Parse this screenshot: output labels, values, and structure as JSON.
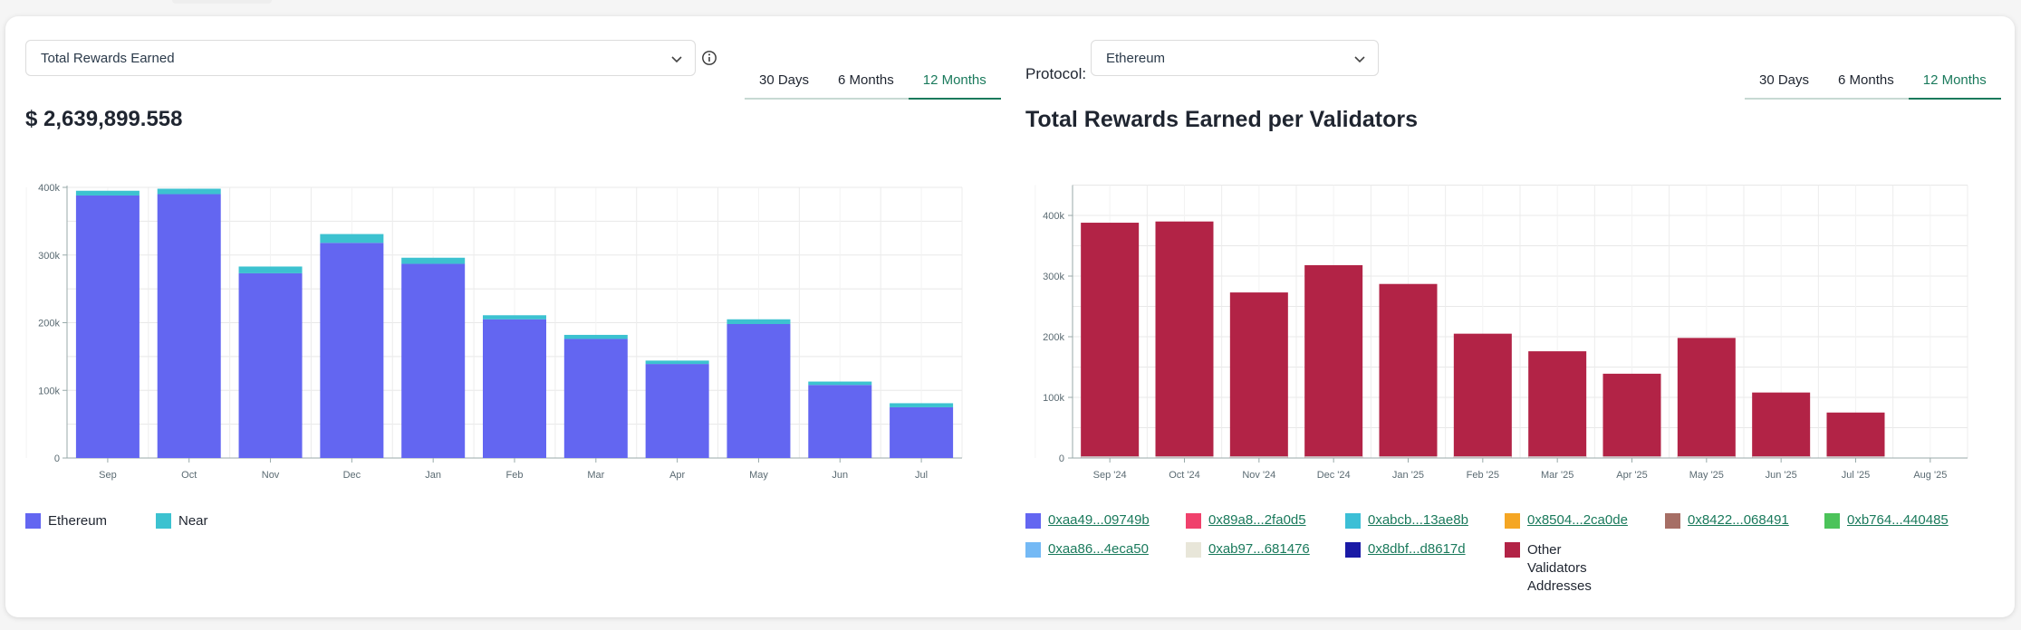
{
  "left": {
    "select_value": "Total Rewards Earned",
    "total": "$ 2,639,899.558",
    "tabs": [
      "30 Days",
      "6 Months",
      "12 Months"
    ],
    "active_tab": "12 Months",
    "legend": [
      {
        "label": "Ethereum",
        "color": "#6366f1"
      },
      {
        "label": "Near",
        "color": "#3cc2d0"
      }
    ],
    "chart_data": {
      "type": "bar",
      "stacked": true,
      "categories": [
        "Sep",
        "Oct",
        "Nov",
        "Dec",
        "Jan",
        "Feb",
        "Mar",
        "Apr",
        "May",
        "Jun",
        "Jul"
      ],
      "series": [
        {
          "name": "Ethereum",
          "values": [
            388000,
            390000,
            273000,
            318000,
            287000,
            205000,
            176000,
            139000,
            198000,
            108000,
            75000
          ]
        },
        {
          "name": "Near",
          "values": [
            7000,
            8000,
            10000,
            13000,
            9000,
            6000,
            6000,
            5000,
            7000,
            5000,
            6000
          ]
        }
      ],
      "yticks": [
        "0",
        "100k",
        "200k",
        "300k",
        "400k"
      ],
      "ylim": [
        0,
        400000
      ],
      "title": "",
      "xlabel": "",
      "ylabel": ""
    }
  },
  "right": {
    "protocol_label": "Protocol:",
    "protocol_value": "Ethereum",
    "title": "Total Rewards Earned per Validators",
    "tabs": [
      "30 Days",
      "6 Months",
      "12 Months"
    ],
    "active_tab": "12 Months",
    "legend": [
      {
        "label": "0xaa49...09749b",
        "color": "#6366f1",
        "link": true
      },
      {
        "label": "0x89a8...2fa0d5",
        "color": "#f0416c",
        "link": true
      },
      {
        "label": "0xabcb...13ae8b",
        "color": "#3cbfd6",
        "link": true
      },
      {
        "label": "0x8504...2ca0de",
        "color": "#f5a623",
        "link": true
      },
      {
        "label": "0x8422...068491",
        "color": "#a66e65",
        "link": true
      },
      {
        "label": "0xb764...440485",
        "color": "#4cc35a",
        "link": true
      },
      {
        "label": "0xaa86...4eca50",
        "color": "#74b9f5",
        "link": true
      },
      {
        "label": "0xab97...681476",
        "color": "#e8e6d9",
        "link": true
      },
      {
        "label": "0x8dbf...d8617d",
        "color": "#1a1aa6",
        "link": true
      },
      {
        "label": "Other Validators Addresses",
        "color": "#b22346",
        "link": false
      }
    ],
    "chart_data": {
      "type": "bar",
      "categories": [
        "Sep '24",
        "Oct '24",
        "Nov '24",
        "Dec '24",
        "Jan '25",
        "Feb '25",
        "Mar '25",
        "Apr '25",
        "May '25",
        "Jun '25",
        "Jul '25",
        "Aug '25"
      ],
      "series": [
        {
          "name": "Other Validators Addresses",
          "values": [
            388000,
            390000,
            273000,
            318000,
            287000,
            205000,
            176000,
            139000,
            198000,
            108000,
            75000,
            0
          ]
        }
      ],
      "yticks": [
        "0",
        "100k",
        "200k",
        "300k",
        "400k"
      ],
      "ylim": [
        0,
        450000
      ],
      "title": "Total Rewards Earned per Validators",
      "xlabel": "",
      "ylabel": ""
    }
  }
}
